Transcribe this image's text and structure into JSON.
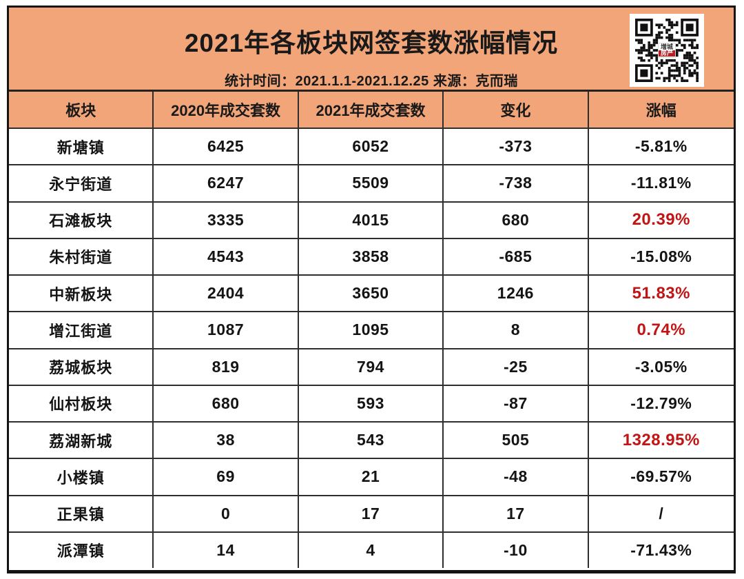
{
  "colors": {
    "accent_orange": "#F1A578",
    "highlight_red": "#C11414",
    "grid_border": "#2e2e2e",
    "text": "#191919"
  },
  "banner": {
    "title": "2021年各板块网签套数涨幅情况",
    "subtitle": "统计时间：2021.1.1-2021.12.25  来源：克而瑞",
    "qr": {
      "logo_top": "增城",
      "logo_bottom": "房产"
    }
  },
  "table": {
    "columns": [
      "板块",
      "2020年成交套数",
      "2021年成交套数",
      "变化",
      "涨幅"
    ],
    "rows": [
      {
        "name": "新塘镇",
        "y2020": "6425",
        "y2021": "6052",
        "change": "-373",
        "pct": "-5.81%",
        "highlight": false
      },
      {
        "name": "永宁街道",
        "y2020": "6247",
        "y2021": "5509",
        "change": "-738",
        "pct": "-11.81%",
        "highlight": false
      },
      {
        "name": "石滩板块",
        "y2020": "3335",
        "y2021": "4015",
        "change": "680",
        "pct": "20.39%",
        "highlight": true
      },
      {
        "name": "朱村街道",
        "y2020": "4543",
        "y2021": "3858",
        "change": "-685",
        "pct": "-15.08%",
        "highlight": false
      },
      {
        "name": "中新板块",
        "y2020": "2404",
        "y2021": "3650",
        "change": "1246",
        "pct": "51.83%",
        "highlight": true
      },
      {
        "name": "增江街道",
        "y2020": "1087",
        "y2021": "1095",
        "change": "8",
        "pct": "0.74%",
        "highlight": true
      },
      {
        "name": "荔城板块",
        "y2020": "819",
        "y2021": "794",
        "change": "-25",
        "pct": "-3.05%",
        "highlight": false
      },
      {
        "name": "仙村板块",
        "y2020": "680",
        "y2021": "593",
        "change": "-87",
        "pct": "-12.79%",
        "highlight": false
      },
      {
        "name": "荔湖新城",
        "y2020": "38",
        "y2021": "543",
        "change": "505",
        "pct": "1328.95%",
        "highlight": true
      },
      {
        "name": "小楼镇",
        "y2020": "69",
        "y2021": "21",
        "change": "-48",
        "pct": "-69.57%",
        "highlight": false
      },
      {
        "name": "正果镇",
        "y2020": "0",
        "y2021": "17",
        "change": "17",
        "pct": "/",
        "highlight": false
      },
      {
        "name": "派潭镇",
        "y2020": "14",
        "y2021": "4",
        "change": "-10",
        "pct": "-71.43%",
        "highlight": false
      }
    ]
  },
  "chart_data": {
    "type": "table",
    "title": "2021年各板块网签套数涨幅情况",
    "subtitle": "统计时间：2021.1.1-2021.12.25 来源：克而瑞",
    "columns": [
      "板块",
      "2020年成交套数",
      "2021年成交套数",
      "变化",
      "涨幅"
    ],
    "rows": [
      [
        "新塘镇",
        6425,
        6052,
        -373,
        "-5.81%"
      ],
      [
        "永宁街道",
        6247,
        5509,
        -738,
        "-11.81%"
      ],
      [
        "石滩板块",
        3335,
        4015,
        680,
        "20.39%"
      ],
      [
        "朱村街道",
        4543,
        3858,
        -685,
        "-15.08%"
      ],
      [
        "中新板块",
        2404,
        3650,
        1246,
        "51.83%"
      ],
      [
        "增江街道",
        1087,
        1095,
        8,
        "0.74%"
      ],
      [
        "荔城板块",
        819,
        794,
        -25,
        "-3.05%"
      ],
      [
        "仙村板块",
        680,
        593,
        -87,
        "-12.79%"
      ],
      [
        "荔湖新城",
        38,
        543,
        505,
        "1328.95%"
      ],
      [
        "小楼镇",
        69,
        21,
        -48,
        "-69.57%"
      ],
      [
        "正果镇",
        0,
        17,
        17,
        "/"
      ],
      [
        "派潭镇",
        14,
        4,
        -10,
        "-71.43%"
      ]
    ],
    "red_highlight_rows": [
      "石滩板块",
      "中新板块",
      "增江街道",
      "荔湖新城"
    ],
    "layout_hints": {
      "header_bg": "#F1A578",
      "grid": true,
      "highlight_color": "#C11414"
    }
  }
}
